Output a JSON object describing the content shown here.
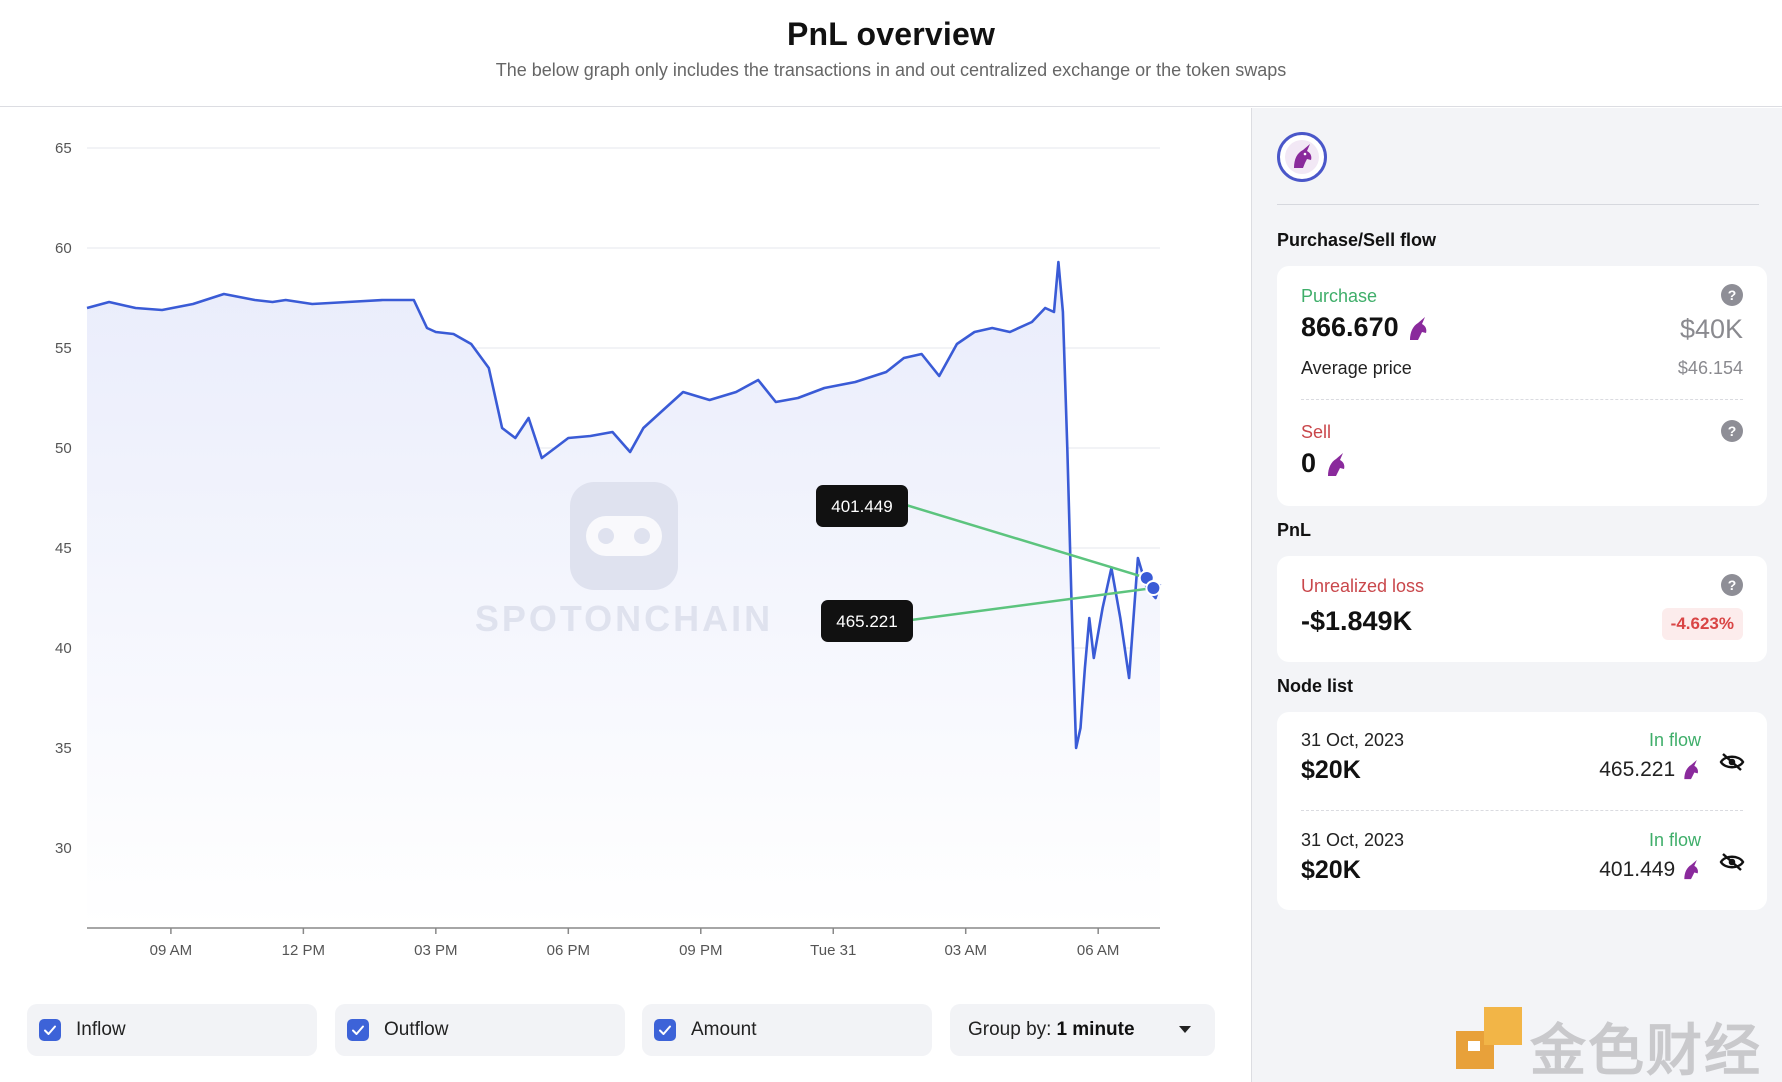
{
  "header": {
    "title": "PnL overview",
    "subtitle": "The below graph only includes the transactions in and out centralized exchange or the token swaps"
  },
  "chart_data": {
    "type": "line",
    "y_ticks": [
      "65",
      "60",
      "55",
      "50",
      "45",
      "40",
      "35",
      "30"
    ],
    "y_range": [
      26,
      66
    ],
    "x_ticks": [
      "09 AM",
      "12 PM",
      "03 PM",
      "06 PM",
      "09 PM",
      "Tue 31",
      "03 AM",
      "06 AM"
    ],
    "x_range_hours": [
      7.1,
      31.4
    ],
    "series": [
      {
        "x_hours": [
          7.1,
          7.6,
          8.2,
          8.8,
          9.5,
          10.2,
          10.9,
          11.3,
          11.6,
          12.2,
          13.0,
          13.8,
          14.5,
          14.8,
          15.0,
          15.4,
          15.8,
          16.2,
          16.5,
          16.8,
          17.1,
          17.4,
          17.7,
          18.0,
          18.5,
          19.0,
          19.4,
          19.7,
          20.1,
          20.6,
          21.2,
          21.8,
          22.3,
          22.7,
          23.2,
          23.8,
          24.5,
          25.2,
          25.6,
          26.0,
          26.4,
          26.8,
          27.2,
          27.6,
          28.0,
          28.5,
          28.8,
          29.0,
          29.1,
          29.2,
          29.3,
          29.4,
          29.5,
          29.6,
          29.7,
          29.8,
          29.9,
          30.1,
          30.3,
          30.5,
          30.7,
          30.9,
          31.1,
          31.3,
          31.4
        ],
        "values": [
          57,
          57.3,
          57,
          56.9,
          57.2,
          57.7,
          57.4,
          57.3,
          57.4,
          57.2,
          57.3,
          57.4,
          57.4,
          56.0,
          55.8,
          55.7,
          55.2,
          54.0,
          51.0,
          50.5,
          51.5,
          49.5,
          50.0,
          50.5,
          50.6,
          50.8,
          49.8,
          51.0,
          51.8,
          52.8,
          52.4,
          52.8,
          53.4,
          52.3,
          52.5,
          53.0,
          53.3,
          53.8,
          54.5,
          54.7,
          53.6,
          55.2,
          55.8,
          56.0,
          55.8,
          56.3,
          57.0,
          56.8,
          59.3,
          56.8,
          50.0,
          42.0,
          35.0,
          36.0,
          39.0,
          41.5,
          39.5,
          42.0,
          44.0,
          41.5,
          38.5,
          44.5,
          43.0,
          42.5,
          43.2
        ]
      }
    ],
    "markers": [
      {
        "label": "401.449",
        "x_hours": 31.1,
        "value": 43.5
      },
      {
        "label": "465.221",
        "x_hours": 31.25,
        "value": 43.0
      }
    ],
    "watermark": "SPOTONCHAIN",
    "colors": {
      "line": "#3a5bd6",
      "fill": "#e9ecfb",
      "connector": "#5cc47e",
      "grid": "#e6e7ec"
    }
  },
  "controls": {
    "inflow": {
      "label": "Inflow",
      "checked": true
    },
    "outflow": {
      "label": "Outflow",
      "checked": true
    },
    "amount": {
      "label": "Amount",
      "checked": true
    },
    "group": {
      "prefix": "Group by:",
      "value": "1 minute"
    }
  },
  "sidebar": {
    "token_icon": "unicorn-icon",
    "flow_title": "Purchase/Sell flow",
    "purchase": {
      "label": "Purchase",
      "amount": "866.670",
      "usd": "$40K",
      "avg_label": "Average price",
      "avg_value": "$46.154"
    },
    "sell": {
      "label": "Sell",
      "amount": "0"
    },
    "pnl_title": "PnL",
    "pnl": {
      "label": "Unrealized loss",
      "value": "-$1.849K",
      "pct": "-4.623%"
    },
    "node_title": "Node list",
    "nodes": [
      {
        "date": "31 Oct, 2023",
        "usd": "$20K",
        "flow": "In flow",
        "amount": "465.221"
      },
      {
        "date": "31 Oct, 2023",
        "usd": "$20K",
        "flow": "In flow",
        "amount": "401.449"
      }
    ]
  },
  "watermark_bottom": {
    "text": "金色财经"
  }
}
